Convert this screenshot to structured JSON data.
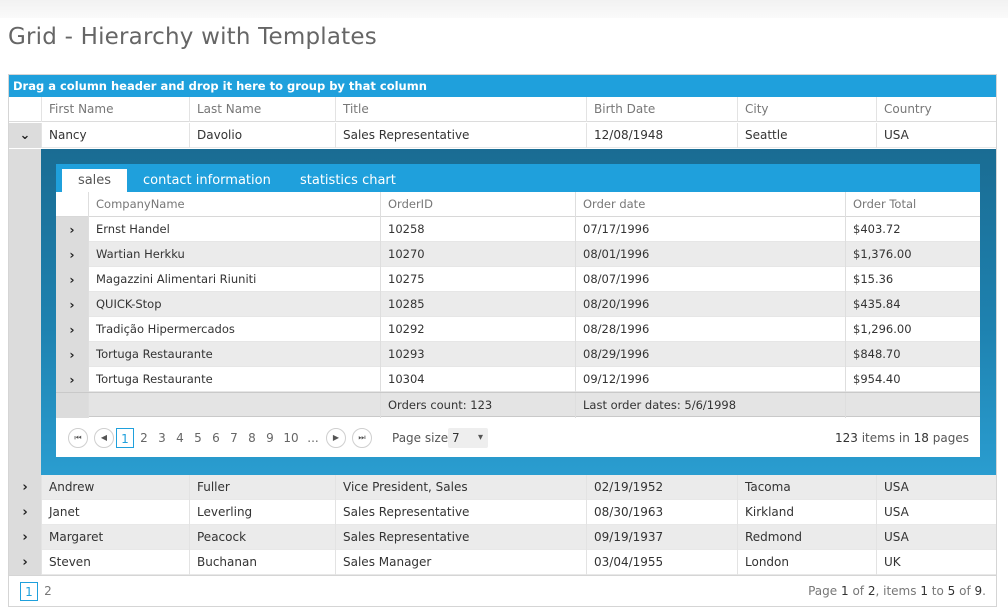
{
  "page": {
    "title": "Grid - Hierarchy with Templates"
  },
  "grid": {
    "group_hint": "Drag a column header and drop it here to group by that column",
    "columns": [
      "First Name",
      "Last Name",
      "Title",
      "Birth Date",
      "City",
      "Country"
    ],
    "rows": [
      {
        "expander": "⌄",
        "first": "Nancy",
        "last": "Davolio",
        "title": "Sales Representative",
        "birth": "12/08/1948",
        "city": "Seattle",
        "country": "USA"
      },
      {
        "expander": "›",
        "first": "Andrew",
        "last": "Fuller",
        "title": "Vice President, Sales",
        "birth": "02/19/1952",
        "city": "Tacoma",
        "country": "USA"
      },
      {
        "expander": "›",
        "first": "Janet",
        "last": "Leverling",
        "title": "Sales Representative",
        "birth": "08/30/1963",
        "city": "Kirkland",
        "country": "USA"
      },
      {
        "expander": "›",
        "first": "Margaret",
        "last": "Peacock",
        "title": "Sales Representative",
        "birth": "09/19/1937",
        "city": "Redmond",
        "country": "USA"
      },
      {
        "expander": "›",
        "first": "Steven",
        "last": "Buchanan",
        "title": "Sales Manager",
        "birth": "03/04/1955",
        "city": "London",
        "country": "UK"
      }
    ],
    "pager": {
      "pages": [
        "1",
        "2"
      ],
      "current": "1",
      "info_prefix": "Page",
      "info_page": "1",
      "info_of": "of",
      "info_total": "2",
      "info_items": ", items",
      "info_from": "1",
      "info_to_word": "to",
      "info_to": "5",
      "info_of2": "of",
      "info_count": "9",
      "info_end": "."
    }
  },
  "detail": {
    "tabs": [
      "sales",
      "contact information",
      "statistics chart"
    ],
    "active_tab": "sales",
    "columns": [
      "CompanyName",
      "OrderID",
      "Order date",
      "Order Total"
    ],
    "rows": [
      {
        "company": "Ernst Handel",
        "order_id": "10258",
        "date": "07/17/1996",
        "total": "$403.72"
      },
      {
        "company": "Wartian Herkku",
        "order_id": "10270",
        "date": "08/01/1996",
        "total": "$1,376.00"
      },
      {
        "company": "Magazzini Alimentari Riuniti",
        "order_id": "10275",
        "date": "08/07/1996",
        "total": "$15.36"
      },
      {
        "company": "QUICK-Stop",
        "order_id": "10285",
        "date": "08/20/1996",
        "total": "$435.84"
      },
      {
        "company": "Tradição Hipermercados",
        "order_id": "10292",
        "date": "08/28/1996",
        "total": "$1,296.00"
      },
      {
        "company": "Tortuga Restaurante",
        "order_id": "10293",
        "date": "08/29/1996",
        "total": "$848.70"
      },
      {
        "company": "Tortuga Restaurante",
        "order_id": "10304",
        "date": "09/12/1996",
        "total": "$954.40"
      }
    ],
    "footer": {
      "orders_count": "Orders count: 123",
      "last_order": "Last order dates: 5/6/1998"
    },
    "pager": {
      "first_icon": "⏮",
      "prev_icon": "◀",
      "next_icon": "▶",
      "last_icon": "⏭",
      "pages": [
        "1",
        "2",
        "3",
        "4",
        "5",
        "6",
        "7",
        "8",
        "9",
        "10",
        "..."
      ],
      "current": "1",
      "page_size_label": "Page size:",
      "page_size_value": "7",
      "dropdown_icon": "▾",
      "total_items": "123",
      "items_word": "items in",
      "total_pages": "18",
      "pages_word": "pages"
    }
  }
}
